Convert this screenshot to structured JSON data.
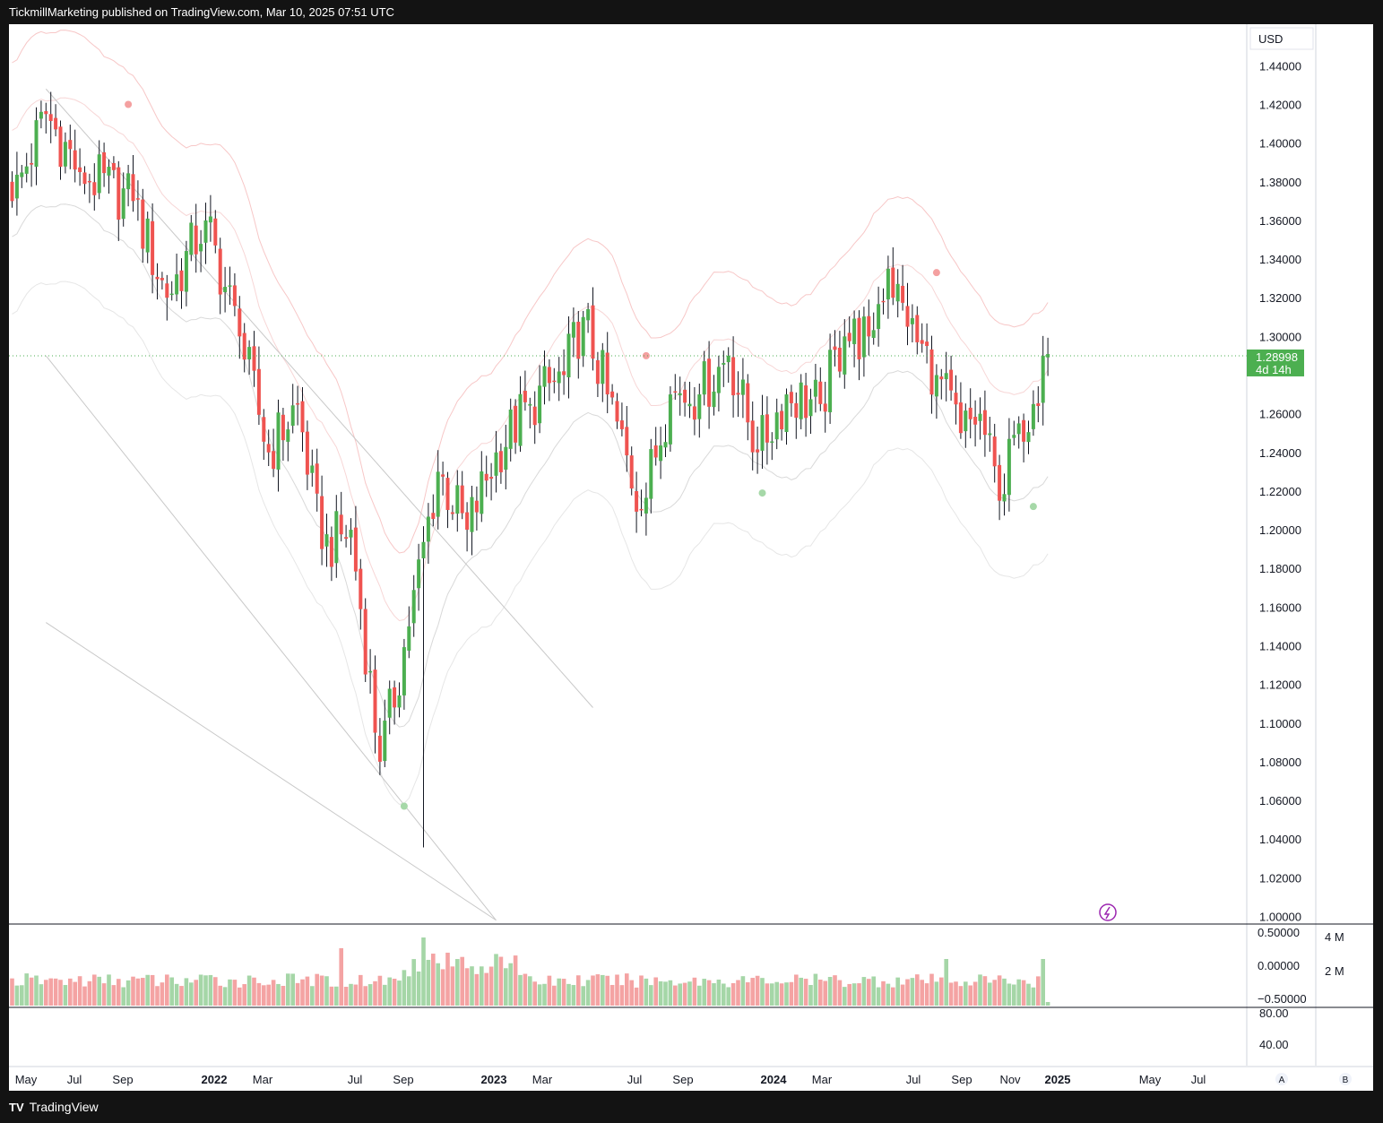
{
  "header": {
    "text": "TickmillMarketing published on TradingView.com, Mar 10, 2025 07:51 UTC"
  },
  "footer": {
    "logo": "TV",
    "brand": "TradingView"
  },
  "colors": {
    "up": "#4caf50",
    "down": "#ef5350",
    "vol_up": "#a5d6a7",
    "vol_down": "#f4a3a3",
    "accent": "#4caf50",
    "page_bg": "#131313",
    "axis": "#131722"
  },
  "chart_data": {
    "type": "candlestick",
    "title": "",
    "currency": "USD",
    "ylim": [
      1.0,
      1.46
    ],
    "price_ticks": [
      "1.44000",
      "1.42000",
      "1.40000",
      "1.38000",
      "1.36000",
      "1.34000",
      "1.32000",
      "1.30000",
      "1.26000",
      "1.24000",
      "1.22000",
      "1.20000",
      "1.18000",
      "1.16000",
      "1.14000",
      "1.12000",
      "1.10000",
      "1.08000",
      "1.06000",
      "1.04000",
      "1.02000",
      "1.00000"
    ],
    "last_price": {
      "value": "1.28998",
      "countdown": "4d 14h"
    },
    "x_labels": [
      {
        "t": "May",
        "bold": false
      },
      {
        "t": "Jul",
        "bold": false
      },
      {
        "t": "Sep",
        "bold": false
      },
      {
        "t": "2022",
        "bold": true
      },
      {
        "t": "Mar",
        "bold": false
      },
      {
        "t": "Jul",
        "bold": false
      },
      {
        "t": "Sep",
        "bold": false
      },
      {
        "t": "2023",
        "bold": true
      },
      {
        "t": "Mar",
        "bold": false
      },
      {
        "t": "Jul",
        "bold": false
      },
      {
        "t": "Sep",
        "bold": false
      },
      {
        "t": "2024",
        "bold": true
      },
      {
        "t": "Mar",
        "bold": false
      },
      {
        "t": "Jul",
        "bold": false
      },
      {
        "t": "Sep",
        "bold": false
      },
      {
        "t": "Nov",
        "bold": false
      },
      {
        "t": "2025",
        "bold": true
      },
      {
        "t": "May",
        "bold": false
      },
      {
        "t": "Jul",
        "bold": false
      }
    ],
    "pane1_ticks": [
      "0.50000",
      "0.00000",
      "−0.50000"
    ],
    "pane1_volume_ticks": [
      "4 M",
      "2 M"
    ],
    "pane2_ticks": [
      "80.00",
      "40.00"
    ],
    "scale_buttons": [
      "A",
      "B"
    ],
    "anchors": [
      {
        "i": 0,
        "c": 1.37
      },
      {
        "i": 7,
        "c": 1.415
      },
      {
        "i": 14,
        "c": 1.385
      },
      {
        "i": 25,
        "c": 1.37
      },
      {
        "i": 32,
        "c": 1.32
      },
      {
        "i": 40,
        "c": 1.36
      },
      {
        "i": 47,
        "c": 1.3
      },
      {
        "i": 53,
        "c": 1.24
      },
      {
        "i": 59,
        "c": 1.265
      },
      {
        "i": 64,
        "c": 1.19
      },
      {
        "i": 70,
        "c": 1.2
      },
      {
        "i": 76,
        "c": 1.08
      },
      {
        "i": 82,
        "c": 1.15
      },
      {
        "i": 88,
        "c": 1.23
      },
      {
        "i": 94,
        "c": 1.2
      },
      {
        "i": 100,
        "c": 1.24
      },
      {
        "i": 107,
        "c": 1.265
      },
      {
        "i": 114,
        "c": 1.28
      },
      {
        "i": 118,
        "c": 1.31
      },
      {
        "i": 123,
        "c": 1.27
      },
      {
        "i": 130,
        "c": 1.21
      },
      {
        "i": 136,
        "c": 1.27
      },
      {
        "i": 142,
        "c": 1.27
      },
      {
        "i": 148,
        "c": 1.29
      },
      {
        "i": 154,
        "c": 1.24
      },
      {
        "i": 160,
        "c": 1.27
      },
      {
        "i": 167,
        "c": 1.265
      },
      {
        "i": 172,
        "c": 1.3
      },
      {
        "i": 177,
        "c": 1.3
      },
      {
        "i": 181,
        "c": 1.335
      },
      {
        "i": 185,
        "c": 1.305
      },
      {
        "i": 191,
        "c": 1.28
      },
      {
        "i": 196,
        "c": 1.25
      },
      {
        "i": 200,
        "c": 1.26
      },
      {
        "i": 204,
        "c": 1.215
      },
      {
        "i": 208,
        "c": 1.255
      },
      {
        "i": 211,
        "c": 1.265
      },
      {
        "i": 213,
        "c": 1.29
      }
    ],
    "lows_highs": {
      "high_max": 1.4265,
      "low_min": 1.0357
    },
    "markers": [
      {
        "i": 24,
        "price": 1.42,
        "type": "sell"
      },
      {
        "i": 81,
        "price": 1.057,
        "type": "buy"
      },
      {
        "i": 131,
        "price": 1.29,
        "type": "sell"
      },
      {
        "i": 155,
        "price": 1.219,
        "type": "buy"
      },
      {
        "i": 191,
        "price": 1.333,
        "type": "sell"
      },
      {
        "i": 211,
        "price": 1.212,
        "type": "buy"
      }
    ],
    "trendlines": [
      {
        "from": {
          "i": 7,
          "price": 1.428
        },
        "to": {
          "i": 120,
          "price": 1.108
        }
      },
      {
        "from": {
          "i": 7,
          "price": 1.29
        },
        "to": {
          "i": 100,
          "price": 0.998
        }
      },
      {
        "from": {
          "i": 7,
          "price": 1.152
        },
        "to": {
          "i": 100,
          "price": 0.998
        }
      }
    ]
  }
}
